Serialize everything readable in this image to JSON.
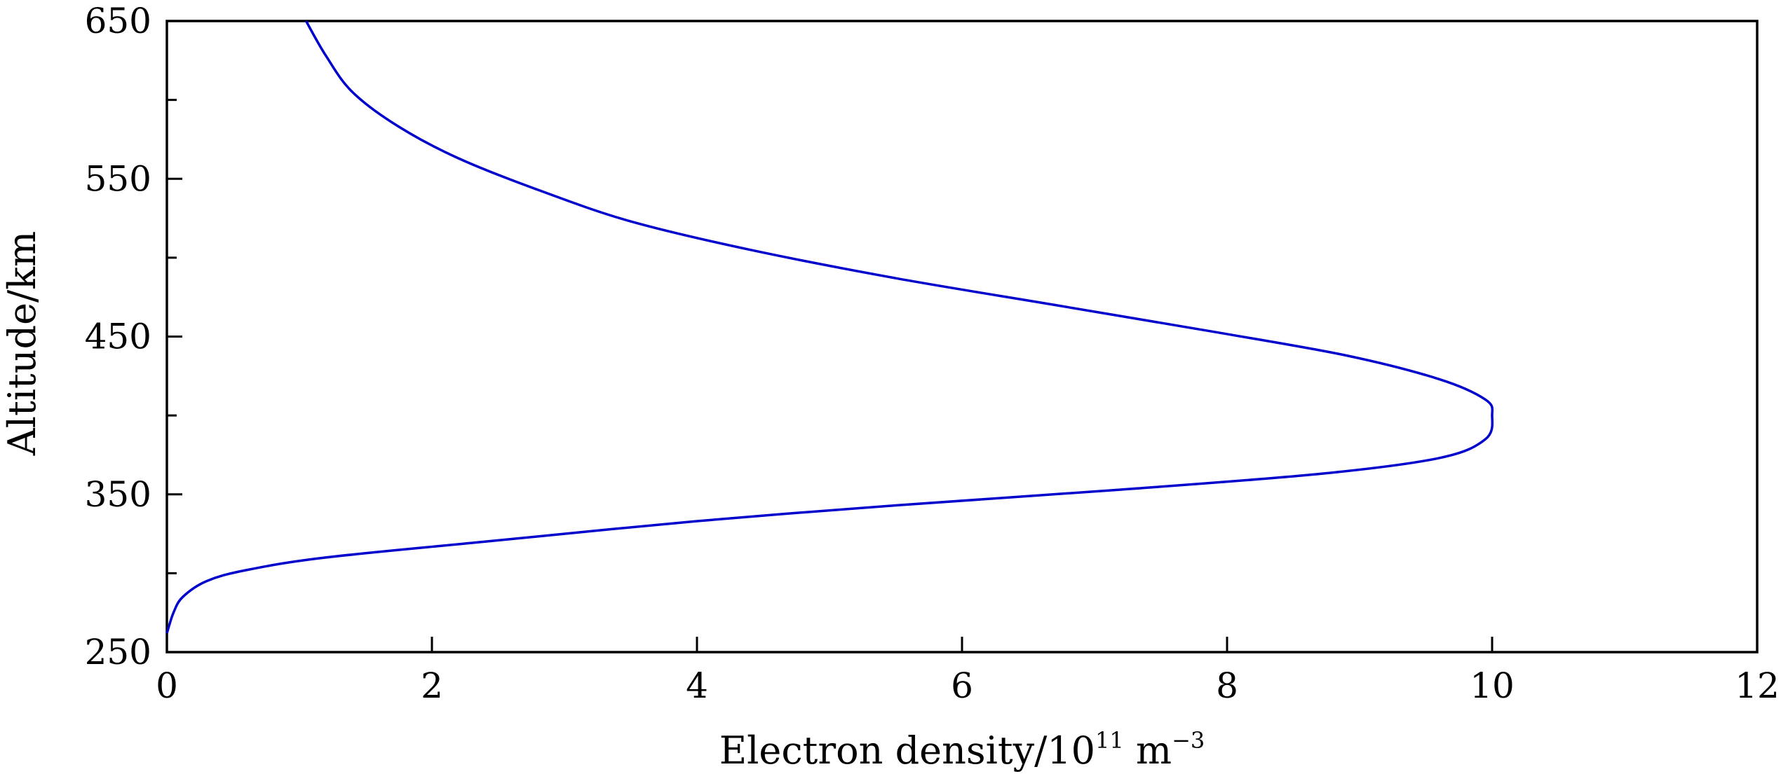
{
  "chart_data": {
    "type": "line",
    "title": "",
    "xlabel": {
      "text": "Electron density/10",
      "exp": "11",
      "unit": " m",
      "unit_exp": "−3"
    },
    "ylabel": "Altitude/km",
    "xlim": [
      0,
      12
    ],
    "ylim": [
      250,
      650
    ],
    "x_ticks": [
      0,
      2,
      4,
      6,
      8,
      10,
      12
    ],
    "y_ticks": [
      250,
      350,
      450,
      550,
      650
    ],
    "y_minor_ticks": [
      300,
      400,
      500,
      600
    ],
    "grid": false,
    "legend": false,
    "line_color": "#0000cc",
    "series": [
      {
        "x": [
          0.0,
          0.05,
          0.12,
          0.3,
          0.6,
          1.2,
          2.4,
          4.0,
          5.5,
          7.2,
          8.7,
          9.6,
          9.95,
          10.0,
          9.95,
          9.6,
          8.9,
          7.9,
          6.7,
          5.5,
          4.4,
          3.5,
          2.8,
          2.2,
          1.75,
          1.4,
          1.2,
          1.05
        ],
        "y": [
          262,
          275,
          285,
          295,
          302,
          310,
          320,
          333,
          343,
          353,
          363,
          373,
          385,
          400,
          410,
          423,
          438,
          453,
          470,
          487,
          505,
          523,
          543,
          563,
          583,
          605,
          628,
          650
        ]
      }
    ]
  }
}
